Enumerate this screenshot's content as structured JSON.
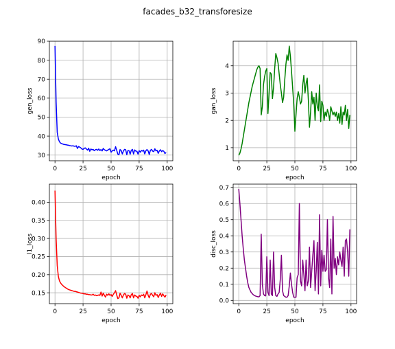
{
  "figure": {
    "title": "facades_b32_transforesize"
  },
  "chart_data": [
    {
      "type": "line",
      "xlabel": "epoch",
      "ylabel": "gen_loss",
      "color": "#0000ff",
      "xlim": [
        -5,
        105
      ],
      "ylim": [
        27,
        90
      ],
      "xticks": [
        0,
        25,
        50,
        75,
        100
      ],
      "yticks": [
        30,
        40,
        50,
        60,
        70,
        80,
        90
      ],
      "grid": true,
      "x": [
        0,
        1,
        2,
        3,
        4,
        5,
        6,
        7,
        8,
        9,
        10,
        11,
        12,
        13,
        14,
        15,
        16,
        17,
        18,
        19,
        20,
        21,
        22,
        23,
        24,
        25,
        26,
        27,
        28,
        29,
        30,
        31,
        32,
        33,
        34,
        35,
        36,
        37,
        38,
        39,
        40,
        41,
        42,
        43,
        44,
        45,
        46,
        47,
        48,
        49,
        50,
        51,
        52,
        53,
        54,
        55,
        56,
        57,
        58,
        59,
        60,
        61,
        62,
        63,
        64,
        65,
        66,
        67,
        68,
        69,
        70,
        71,
        72,
        73,
        74,
        75,
        76,
        77,
        78,
        79,
        80,
        81,
        82,
        83,
        84,
        85,
        86,
        87,
        88,
        89,
        90,
        91,
        92,
        93,
        94,
        95,
        96,
        97,
        98,
        99
      ],
      "values": [
        87.5,
        58,
        42,
        38.5,
        37,
        36.3,
        36,
        35.8,
        35.6,
        35.5,
        35.4,
        35.3,
        35.2,
        35,
        34.9,
        34.8,
        34.9,
        34.7,
        34.6,
        34.9,
        33.5,
        34.5,
        34.2,
        33.8,
        33.2,
        33,
        33.5,
        33.8,
        33.2,
        32.6,
        33.6,
        32,
        33.2,
        32.8,
        33,
        32.3,
        32.8,
        33,
        32.5,
        33.2,
        32.4,
        32.9,
        32.2,
        33.5,
        32.8,
        32.5,
        32.2,
        32.6,
        33,
        33.3,
        31.5,
        32.2,
        32.6,
        32.2,
        34.4,
        32.5,
        30.5,
        30.2,
        32.9,
        32.4,
        30.6,
        32.2,
        33,
        32.8,
        30.2,
        32.4,
        32.3,
        30.5,
        32.5,
        33,
        30.6,
        32.7,
        32.1,
        32,
        30.5,
        32.3,
        31.5,
        32.4,
        32.1,
        32.6,
        30.6,
        32.3,
        32.9,
        32.2,
        30.3,
        32.5,
        33,
        32.1,
        31.8,
        33.3,
        32.2,
        32.5,
        30.9,
        32.2,
        32.8,
        31.8,
        32.4,
        32,
        30.8,
        31.4
      ]
    },
    {
      "type": "line",
      "xlabel": "epoch",
      "ylabel": "gan_loss",
      "color": "#008000",
      "xlim": [
        -5,
        105
      ],
      "ylim": [
        0.52,
        4.9
      ],
      "xticks": [
        0,
        25,
        50,
        75,
        100
      ],
      "yticks": [
        1,
        2,
        3,
        4
      ],
      "grid": true,
      "x": [
        0,
        1,
        2,
        3,
        4,
        5,
        6,
        7,
        8,
        9,
        10,
        11,
        12,
        13,
        14,
        15,
        16,
        17,
        18,
        19,
        20,
        21,
        22,
        23,
        24,
        25,
        26,
        27,
        28,
        29,
        30,
        31,
        32,
        33,
        34,
        35,
        36,
        37,
        38,
        39,
        40,
        41,
        42,
        43,
        44,
        45,
        46,
        47,
        48,
        49,
        50,
        51,
        52,
        53,
        54,
        55,
        56,
        57,
        58,
        59,
        60,
        61,
        62,
        63,
        64,
        65,
        66,
        67,
        68,
        69,
        70,
        71,
        72,
        73,
        74,
        75,
        76,
        77,
        78,
        79,
        80,
        81,
        82,
        83,
        84,
        85,
        86,
        87,
        88,
        89,
        90,
        91,
        92,
        93,
        94,
        95,
        96,
        97,
        98,
        99
      ],
      "values": [
        0.72,
        0.8,
        0.95,
        1.15,
        1.4,
        1.65,
        1.9,
        2.15,
        2.4,
        2.65,
        2.85,
        3.05,
        3.25,
        3.4,
        3.55,
        3.7,
        3.85,
        3.95,
        4.0,
        3.9,
        2.2,
        2.5,
        3.3,
        3.6,
        3.8,
        3.9,
        2.25,
        3.0,
        3.75,
        3.7,
        2.8,
        3.2,
        3.9,
        4.45,
        4.3,
        4.1,
        3.7,
        3.3,
        3.0,
        2.65,
        2.85,
        3.5,
        4.05,
        4.4,
        4.2,
        4.72,
        4.35,
        3.8,
        3.2,
        2.6,
        1.6,
        2.2,
        2.8,
        3.05,
        2.85,
        2.6,
        2.7,
        3.3,
        3.65,
        3.0,
        3.35,
        3.55,
        2.75,
        1.75,
        2.3,
        3.05,
        2.6,
        2.85,
        2.0,
        3.0,
        2.5,
        2.35,
        3.3,
        1.95,
        2.7,
        2.55,
        2.0,
        2.3,
        2.15,
        2.4,
        2.25,
        2.0,
        2.5,
        2.35,
        2.2,
        2.3,
        2.15,
        2.3,
        2.0,
        2.25,
        1.9,
        2.5,
        1.85,
        2.3,
        2.2,
        2.55,
        2.0,
        2.4,
        1.7,
        2.2
      ]
    },
    {
      "type": "line",
      "xlabel": "epoch",
      "ylabel": "l1_loss",
      "color": "#ff0000",
      "xlim": [
        -5,
        105
      ],
      "ylim": [
        0.12,
        0.45
      ],
      "xticks": [
        0,
        25,
        50,
        75,
        100
      ],
      "yticks": [
        0.15,
        0.2,
        0.25,
        0.3,
        0.35,
        0.4
      ],
      "grid": true,
      "x": [
        0,
        1,
        2,
        3,
        4,
        5,
        6,
        7,
        8,
        9,
        10,
        11,
        12,
        13,
        14,
        15,
        16,
        17,
        18,
        19,
        20,
        21,
        22,
        23,
        24,
        25,
        26,
        27,
        28,
        29,
        30,
        31,
        32,
        33,
        34,
        35,
        36,
        37,
        38,
        39,
        40,
        41,
        42,
        43,
        44,
        45,
        46,
        47,
        48,
        49,
        50,
        51,
        52,
        53,
        54,
        55,
        56,
        57,
        58,
        59,
        60,
        61,
        62,
        63,
        64,
        65,
        66,
        67,
        68,
        69,
        70,
        71,
        72,
        73,
        74,
        75,
        76,
        77,
        78,
        79,
        80,
        81,
        82,
        83,
        84,
        85,
        86,
        87,
        88,
        89,
        90,
        91,
        92,
        93,
        94,
        95,
        96,
        97,
        98,
        99
      ],
      "values": [
        0.432,
        0.3,
        0.225,
        0.195,
        0.183,
        0.177,
        0.173,
        0.17,
        0.167,
        0.165,
        0.163,
        0.161,
        0.159,
        0.158,
        0.157,
        0.156,
        0.155,
        0.154,
        0.154,
        0.153,
        0.152,
        0.151,
        0.15,
        0.149,
        0.149,
        0.148,
        0.147,
        0.147,
        0.146,
        0.146,
        0.145,
        0.145,
        0.144,
        0.144,
        0.146,
        0.143,
        0.144,
        0.142,
        0.143,
        0.144,
        0.143,
        0.152,
        0.141,
        0.149,
        0.143,
        0.138,
        0.146,
        0.143,
        0.147,
        0.143,
        0.145,
        0.14,
        0.146,
        0.15,
        0.156,
        0.144,
        0.134,
        0.136,
        0.149,
        0.143,
        0.136,
        0.144,
        0.148,
        0.146,
        0.135,
        0.144,
        0.142,
        0.136,
        0.145,
        0.148,
        0.136,
        0.144,
        0.141,
        0.14,
        0.135,
        0.143,
        0.139,
        0.144,
        0.142,
        0.146,
        0.136,
        0.145,
        0.155,
        0.143,
        0.136,
        0.146,
        0.148,
        0.143,
        0.139,
        0.15,
        0.143,
        0.145,
        0.137,
        0.144,
        0.149,
        0.14,
        0.147,
        0.142,
        0.138,
        0.144
      ]
    },
    {
      "type": "line",
      "xlabel": "epoch",
      "ylabel": "disc_loss",
      "color": "#800080",
      "xlim": [
        -5,
        105
      ],
      "ylim": [
        -0.02,
        0.72
      ],
      "xticks": [
        0,
        25,
        50,
        75,
        100
      ],
      "yticks": [
        0.0,
        0.1,
        0.2,
        0.3,
        0.4,
        0.5,
        0.6,
        0.7
      ],
      "grid": true,
      "x": [
        0,
        1,
        2,
        3,
        4,
        5,
        6,
        7,
        8,
        9,
        10,
        11,
        12,
        13,
        14,
        15,
        16,
        17,
        18,
        19,
        20,
        21,
        22,
        23,
        24,
        25,
        26,
        27,
        28,
        29,
        30,
        31,
        32,
        33,
        34,
        35,
        36,
        37,
        38,
        39,
        40,
        41,
        42,
        43,
        44,
        45,
        46,
        47,
        48,
        49,
        50,
        51,
        52,
        53,
        54,
        55,
        56,
        57,
        58,
        59,
        60,
        61,
        62,
        63,
        64,
        65,
        66,
        67,
        68,
        69,
        70,
        71,
        72,
        73,
        74,
        75,
        76,
        77,
        78,
        79,
        80,
        81,
        82,
        83,
        84,
        85,
        86,
        87,
        88,
        89,
        90,
        91,
        92,
        93,
        94,
        95,
        96,
        97,
        98,
        99
      ],
      "values": [
        0.69,
        0.6,
        0.5,
        0.4,
        0.32,
        0.25,
        0.2,
        0.15,
        0.11,
        0.08,
        0.065,
        0.05,
        0.042,
        0.035,
        0.03,
        0.027,
        0.025,
        0.023,
        0.022,
        0.03,
        0.41,
        0.1,
        0.04,
        0.03,
        0.028,
        0.27,
        0.05,
        0.03,
        0.25,
        0.04,
        0.03,
        0.3,
        0.08,
        0.03,
        0.025,
        0.04,
        0.05,
        0.13,
        0.28,
        0.06,
        0.03,
        0.025,
        0.02,
        0.02,
        0.03,
        0.09,
        0.17,
        0.1,
        0.05,
        0.02,
        0.02,
        0.02,
        0.14,
        0.16,
        0.6,
        0.12,
        0.09,
        0.25,
        0.16,
        0.06,
        0.25,
        0.09,
        0.12,
        0.33,
        0.08,
        0.18,
        0.28,
        0.37,
        0.06,
        0.18,
        0.36,
        0.04,
        0.53,
        0.09,
        0.31,
        0.18,
        0.28,
        0.18,
        0.19,
        0.5,
        0.14,
        0.08,
        0.38,
        0.04,
        0.52,
        0.2,
        0.26,
        0.16,
        0.27,
        0.22,
        0.3,
        0.25,
        0.21,
        0.33,
        0.15,
        0.37,
        0.38,
        0.3,
        0.15,
        0.44
      ]
    }
  ]
}
